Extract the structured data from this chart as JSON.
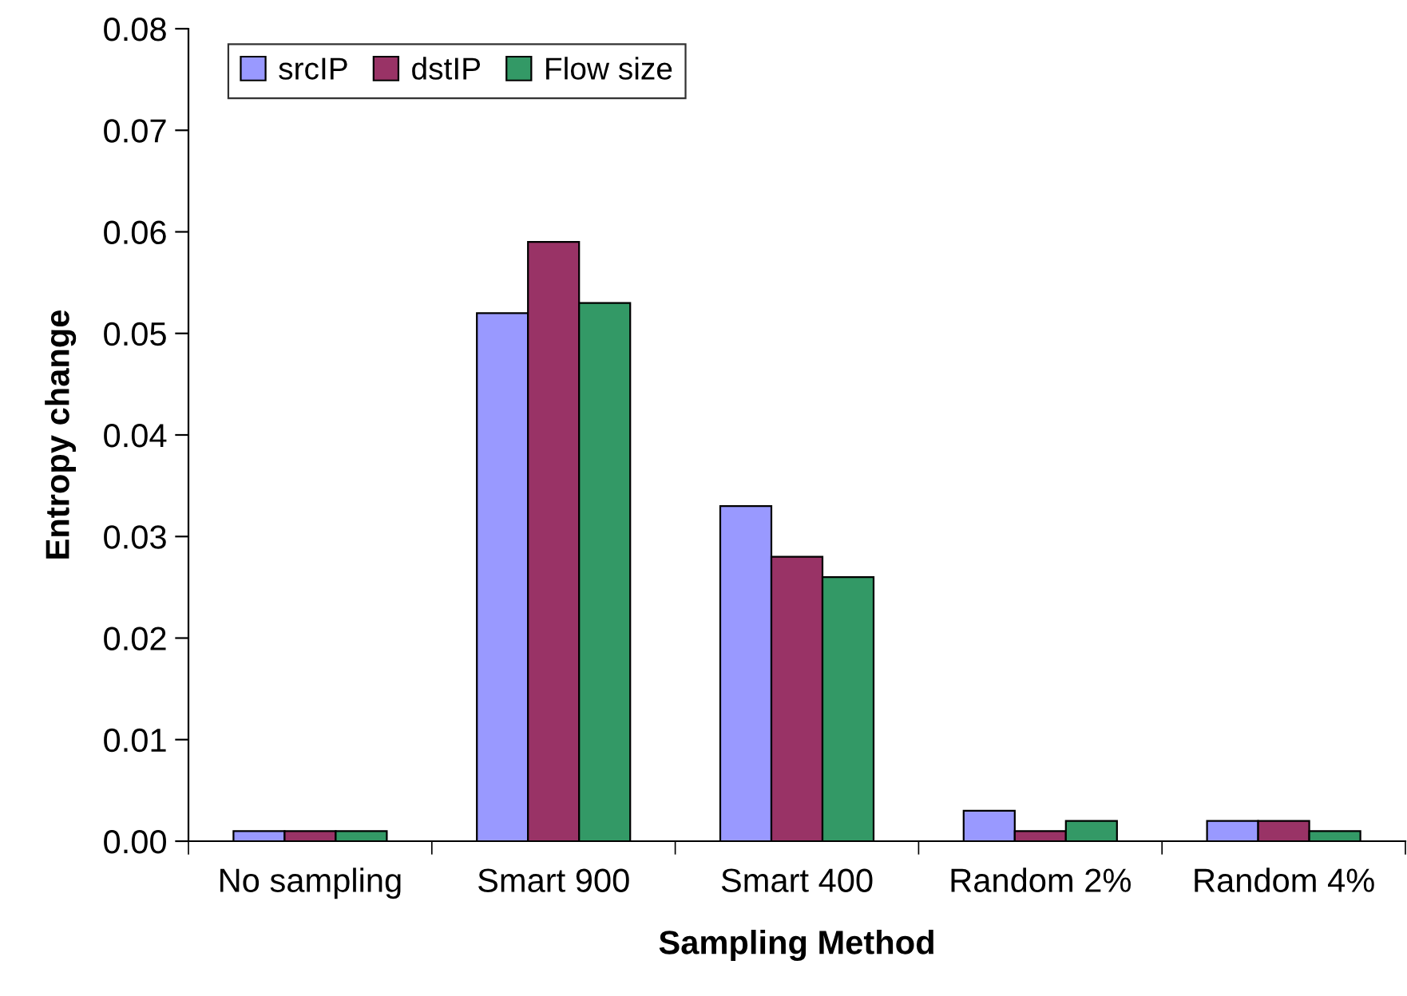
{
  "chart_data": {
    "type": "bar",
    "xlabel": "Sampling Method",
    "ylabel": "Entropy change",
    "categories": [
      "No sampling",
      "Smart 900",
      "Smart 400",
      "Random 2%",
      "Random 4%"
    ],
    "series": [
      {
        "name": "srcIP",
        "color": "#9999ff",
        "values": [
          0.001,
          0.052,
          0.033,
          0.003,
          0.002
        ]
      },
      {
        "name": "dstIP",
        "color": "#993366",
        "values": [
          0.001,
          0.059,
          0.028,
          0.001,
          0.002
        ]
      },
      {
        "name": "Flow size",
        "color": "#339966",
        "values": [
          0.001,
          0.053,
          0.026,
          0.002,
          0.001
        ]
      }
    ],
    "ylim": [
      0,
      0.08
    ],
    "yticks": [
      {
        "value": 0,
        "label": "0.00"
      },
      {
        "value": 0.01,
        "label": "0.01"
      },
      {
        "value": 0.02,
        "label": "0.02"
      },
      {
        "value": 0.03,
        "label": "0.03"
      },
      {
        "value": 0.04,
        "label": "0.04"
      },
      {
        "value": 0.05,
        "label": "0.05"
      },
      {
        "value": 0.06,
        "label": "0.06"
      },
      {
        "value": 0.07,
        "label": "0.07"
      },
      {
        "value": 0.08,
        "label": "0.08"
      }
    ],
    "grid": false,
    "legend": "top left"
  }
}
